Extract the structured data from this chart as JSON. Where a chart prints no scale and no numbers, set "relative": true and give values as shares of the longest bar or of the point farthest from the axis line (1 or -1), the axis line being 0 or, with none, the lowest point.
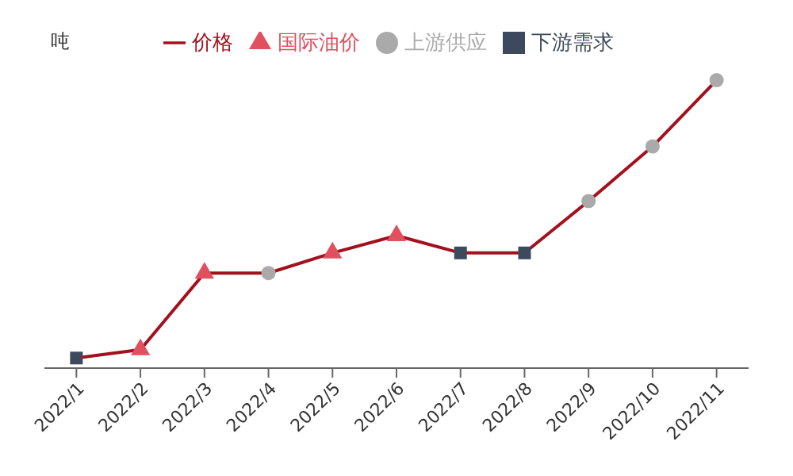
{
  "chart_data": {
    "type": "line",
    "relative": true,
    "ylabel": "吨",
    "categories": [
      "2022/1",
      "2022/2",
      "2022/3",
      "2022/4",
      "2022/5",
      "2022/6",
      "2022/7",
      "2022/8",
      "2022/9",
      "2022/10",
      "2022/11"
    ],
    "series": [
      {
        "name": "价格",
        "color": "#a3101e",
        "marker": "none",
        "values": [
          0.035,
          0.064,
          0.33,
          0.33,
          0.4,
          0.46,
          0.4,
          0.4,
          0.58,
          0.77,
          1
        ]
      },
      {
        "name": "国际油价",
        "type": "scatter",
        "color": "#e0505f",
        "marker": "triangle",
        "values": [
          null,
          0.064,
          0.33,
          null,
          0.4,
          0.46,
          null,
          null,
          null,
          null,
          null
        ]
      },
      {
        "name": "上游供应",
        "type": "scatter",
        "color": "#aaaaaa",
        "marker": "circle",
        "values": [
          null,
          null,
          null,
          0.33,
          null,
          null,
          null,
          null,
          0.58,
          0.77,
          1
        ]
      },
      {
        "name": "下游需求",
        "type": "scatter",
        "color": "#3d4a5e",
        "marker": "square",
        "values": [
          0.035,
          null,
          null,
          null,
          null,
          null,
          0.4,
          0.4,
          null,
          null,
          null
        ]
      }
    ],
    "legend": "top",
    "grid": false
  }
}
